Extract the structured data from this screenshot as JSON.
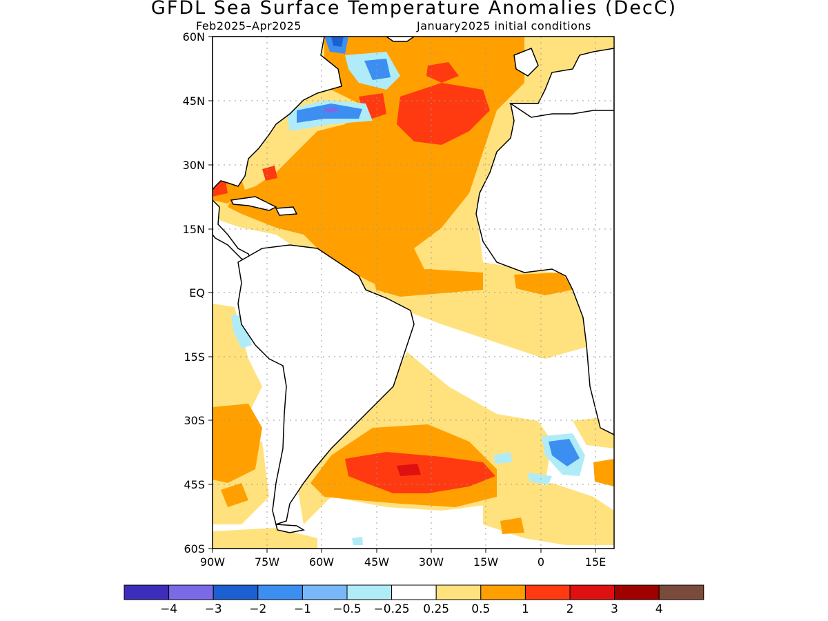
{
  "title": "GFDL Sea Surface Temperature Anomalies (DecC)",
  "subtitle_left": "Feb2025–Apr2025",
  "subtitle_right": "January2025 initial conditions",
  "map": {
    "lon_range": [
      -90,
      20
    ],
    "lat_range": [
      -60,
      60
    ],
    "grid": "dotted",
    "x_ticks": [
      "90W",
      "75W",
      "60W",
      "45W",
      "30W",
      "15W",
      "0",
      "15E"
    ],
    "y_ticks": [
      "60N",
      "45N",
      "30N",
      "15N",
      "EQ",
      "15S",
      "30S",
      "45S",
      "60S"
    ],
    "colors": {
      "land": "#ffffff",
      "ocean_neutral": "#ffffff",
      "coast": "#000000"
    }
  },
  "colorbar": {
    "labels": [
      "−4",
      "−3",
      "−2",
      "−1",
      "−0.5",
      "−0.25",
      "0.25",
      "0.5",
      "1",
      "2",
      "3",
      "4"
    ],
    "colors": [
      "#3c2dba",
      "#7b6ae8",
      "#1c5fd0",
      "#3c8ff0",
      "#78b8f8",
      "#b0ecf8",
      "#ffffff",
      "#ffe27e",
      "#ffa000",
      "#ff3a10",
      "#de1010",
      "#a00000",
      "#7a4a3a"
    ]
  }
}
